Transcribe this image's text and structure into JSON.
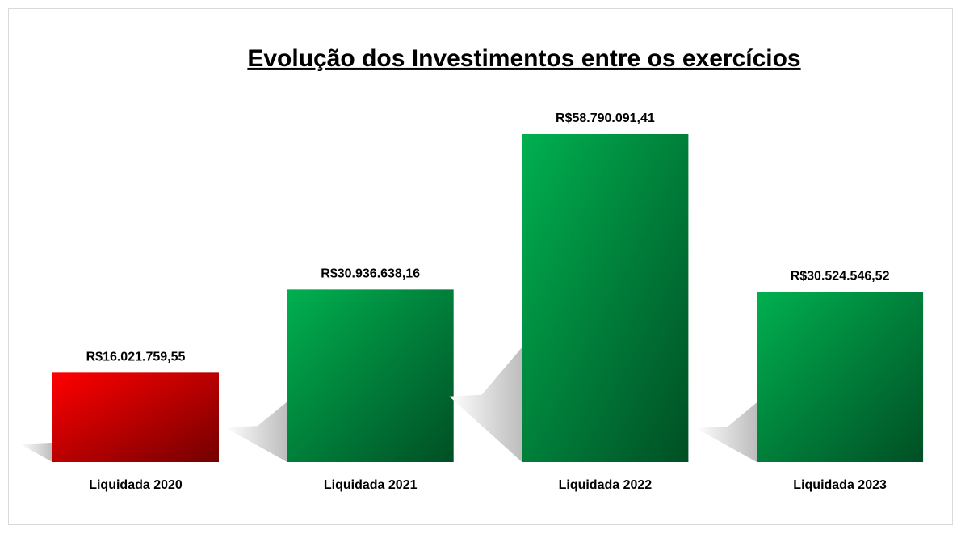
{
  "chart_data": {
    "type": "bar",
    "title": "Evolução dos Investimentos entre os exercícios",
    "categories": [
      "Liquidada 2020",
      "Liquidada 2021",
      "Liquidada 2022",
      "Liquidada 2023"
    ],
    "values": [
      16021759.55,
      30936638.16,
      58790091.41,
      30524546.52
    ],
    "value_labels": [
      "R$16.021.759,55",
      "R$30.936.638,16",
      "R$58.790.091,41",
      "R$30.524.546,52"
    ],
    "colors": [
      "#ff0000",
      "#00b050",
      "#00b050",
      "#00b050"
    ]
  }
}
